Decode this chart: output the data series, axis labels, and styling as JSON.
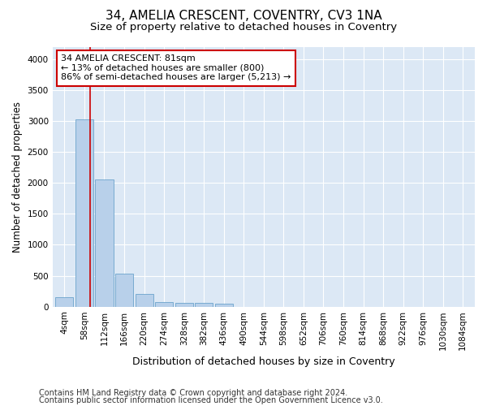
{
  "title_line1": "34, AMELIA CRESCENT, COVENTRY, CV3 1NA",
  "title_line2": "Size of property relative to detached houses in Coventry",
  "xlabel": "Distribution of detached houses by size in Coventry",
  "ylabel": "Number of detached properties",
  "categories": [
    "4sqm",
    "58sqm",
    "112sqm",
    "166sqm",
    "220sqm",
    "274sqm",
    "328sqm",
    "382sqm",
    "436sqm",
    "490sqm",
    "544sqm",
    "598sqm",
    "652sqm",
    "706sqm",
    "760sqm",
    "814sqm",
    "868sqm",
    "922sqm",
    "976sqm",
    "1030sqm",
    "1084sqm"
  ],
  "values": [
    150,
    3030,
    2060,
    540,
    200,
    80,
    60,
    55,
    50,
    0,
    0,
    0,
    0,
    0,
    0,
    0,
    0,
    0,
    0,
    0,
    0
  ],
  "bar_color": "#b8d0ea",
  "bar_edge_color": "#6ba3cc",
  "vline_x_pos": 1.28,
  "vline_color": "#cc0000",
  "annotation_text": "34 AMELIA CRESCENT: 81sqm\n← 13% of detached houses are smaller (800)\n86% of semi-detached houses are larger (5,213) →",
  "annotation_box_facecolor": "#ffffff",
  "annotation_box_edgecolor": "#cc0000",
  "ylim": [
    0,
    4200
  ],
  "yticks": [
    0,
    500,
    1000,
    1500,
    2000,
    2500,
    3000,
    3500,
    4000
  ],
  "background_color": "#dce8f5",
  "footer_line1": "Contains HM Land Registry data © Crown copyright and database right 2024.",
  "footer_line2": "Contains public sector information licensed under the Open Government Licence v3.0.",
  "title_fontsize": 11,
  "subtitle_fontsize": 9.5,
  "ylabel_fontsize": 8.5,
  "xlabel_fontsize": 9,
  "tick_fontsize": 7.5,
  "annotation_fontsize": 8,
  "footer_fontsize": 7
}
